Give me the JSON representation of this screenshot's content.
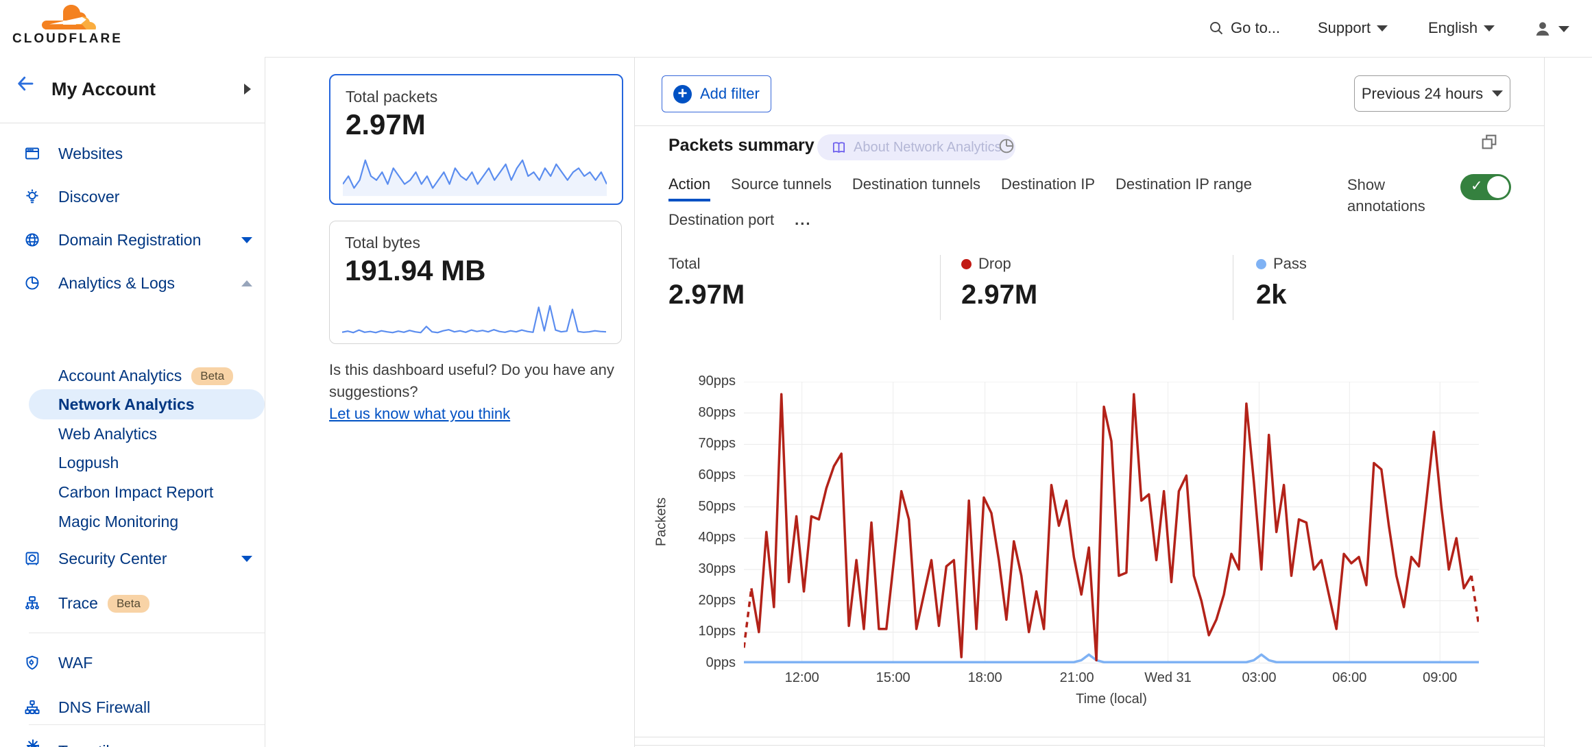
{
  "header": {
    "brand": "CLOUDFLARE",
    "goto_label": "Go to...",
    "support_label": "Support",
    "language_label": "English"
  },
  "sidebar": {
    "title": "My Account",
    "websites": "Websites",
    "discover": "Discover",
    "domain_registration": "Domain Registration",
    "analytics_logs": "Analytics & Logs",
    "account_analytics": "Account Analytics",
    "account_analytics_badge": "Beta",
    "network_analytics": "Network Analytics",
    "web_analytics": "Web Analytics",
    "logpush": "Logpush",
    "carbon_impact": "Carbon Impact Report",
    "magic_monitoring": "Magic Monitoring",
    "security_center": "Security Center",
    "trace": "Trace",
    "trace_badge": "Beta",
    "waf": "WAF",
    "dns_firewall": "DNS Firewall",
    "turnstile": "Turnstile"
  },
  "cards": {
    "packets": {
      "title": "Total packets",
      "value": "2.97M",
      "spark": [
        3,
        5,
        2,
        4,
        9,
        5,
        4,
        6,
        3,
        7,
        5,
        3,
        4,
        6,
        3,
        5,
        2,
        4,
        6,
        3,
        7,
        5,
        4,
        6,
        3,
        5,
        7,
        4,
        6,
        8,
        4,
        7,
        9,
        5,
        6,
        4,
        7,
        5,
        8,
        6,
        4,
        6,
        7,
        5,
        6,
        4,
        6,
        3
      ]
    },
    "bytes": {
      "title": "Total bytes",
      "value": "191.94 MB",
      "spark": [
        1.2,
        1.5,
        1.1,
        1.8,
        1.2,
        1.4,
        1.1,
        1.6,
        1.3,
        1.1,
        1.5,
        1.2,
        1.7,
        1.3,
        1.1,
        2.8,
        1.3,
        1.1,
        1.6,
        1.9,
        1.3,
        1.6,
        1.2,
        1.8,
        1.4,
        1.7,
        1.3,
        1.9,
        1.4,
        1.2,
        1.6,
        1.3,
        1.8,
        1.4,
        1.2,
        8.2,
        1.6,
        8.6,
        1.8,
        1.3,
        1.5,
        7.6,
        1.4,
        1.2,
        1.3,
        1.6,
        1.4,
        1.3
      ]
    }
  },
  "feedback": {
    "question_line1": "Is this dashboard useful? Do you have any",
    "question_line2": "suggestions?",
    "link": "Let us know what you think"
  },
  "toolbar": {
    "add_filter": "Add filter",
    "time_range": "Previous 24 hours"
  },
  "panel": {
    "title": "Packets summary",
    "about": "About Network Analytics",
    "show_annotations_line1": "Show",
    "show_annotations_line2": "annotations",
    "tabs": [
      "Action",
      "Source tunnels",
      "Destination tunnels",
      "Destination IP",
      "Destination IP range",
      "Destination port"
    ],
    "more": "...",
    "active_tab": "Action",
    "stats": [
      {
        "label": "Total",
        "value": "2.97M",
        "color": null
      },
      {
        "label": "Drop",
        "value": "2.97M",
        "color": "#c21a14"
      },
      {
        "label": "Pass",
        "value": "2k",
        "color": "#7fb2f4"
      }
    ]
  },
  "chart_data": {
    "type": "line",
    "title": "Packets summary",
    "xlabel": "Time (local)",
    "ylabel": "Packets",
    "ylim": [
      0,
      90
    ],
    "grid": true,
    "y_ticks": [
      "90pps",
      "80pps",
      "70pps",
      "60pps",
      "50pps",
      "40pps",
      "30pps",
      "20pps",
      "10pps",
      "0pps"
    ],
    "x_ticks": [
      {
        "label": "12:00",
        "f": 0.079
      },
      {
        "label": "15:00",
        "f": 0.203
      },
      {
        "label": "18:00",
        "f": 0.328
      },
      {
        "label": "21:00",
        "f": 0.453
      },
      {
        "label": "Wed 31",
        "f": 0.577
      },
      {
        "label": "03:00",
        "f": 0.701
      },
      {
        "label": "06:00",
        "f": 0.824
      },
      {
        "label": "09:00",
        "f": 0.947
      }
    ],
    "series": [
      {
        "name": "Drop",
        "color": "#b32219",
        "dashed_ends": true,
        "values": [
          5,
          24,
          10,
          42,
          18,
          86,
          26,
          47,
          23,
          47,
          46,
          56,
          63,
          67,
          12,
          33,
          11,
          45,
          11,
          11,
          33,
          55,
          46,
          11,
          22,
          33,
          12,
          31,
          33,
          2,
          52,
          11,
          53,
          48,
          33,
          14,
          39,
          28,
          10,
          23,
          11,
          57,
          44,
          52,
          34,
          22,
          37,
          1,
          82,
          71,
          28,
          29,
          86,
          52,
          54,
          33,
          55,
          26,
          55,
          60,
          28,
          20,
          9,
          14,
          22,
          35,
          30,
          83,
          58,
          30,
          73,
          42,
          57,
          28,
          46,
          45,
          30,
          33,
          22,
          11,
          35,
          32,
          34,
          25,
          64,
          62,
          44,
          28,
          18,
          34,
          31,
          52,
          74,
          50,
          30,
          40,
          24,
          28,
          12
        ]
      },
      {
        "name": "Pass",
        "color": "#7fb2f4",
        "dashed_ends": false,
        "values": [
          0.4,
          0.4,
          0.4,
          0.4,
          0.4,
          0.4,
          0.4,
          0.4,
          0.4,
          0.4,
          0.4,
          0.4,
          0.4,
          0.4,
          0.4,
          0.4,
          0.4,
          0.4,
          0.4,
          0.4,
          0.4,
          0.4,
          0.4,
          0.4,
          0.4,
          0.4,
          0.4,
          0.4,
          0.4,
          0.4,
          0.4,
          0.4,
          0.4,
          0.4,
          0.4,
          0.4,
          0.4,
          0.4,
          0.4,
          0.4,
          0.4,
          0.4,
          0.4,
          0.4,
          0.4,
          1.0,
          2.8,
          1.0,
          0.4,
          0.4,
          0.4,
          0.4,
          0.4,
          0.4,
          0.4,
          0.4,
          0.4,
          0.4,
          0.4,
          0.4,
          0.4,
          0.4,
          0.4,
          0.4,
          0.4,
          0.4,
          0.4,
          0.4,
          1.0,
          2.8,
          1.0,
          0.4,
          0.4,
          0.4,
          0.4,
          0.4,
          0.4,
          0.4,
          0.4,
          0.4,
          0.4,
          0.4,
          0.4,
          0.4,
          0.4,
          0.4,
          0.4,
          0.4,
          0.4,
          0.4,
          0.4,
          0.4,
          0.4,
          0.4,
          0.4,
          0.4,
          0.4,
          0.4,
          0.4
        ]
      }
    ],
    "legend": [
      {
        "label": "Drop",
        "color": "#c21a14"
      },
      {
        "label": "Pass",
        "color": "#7fb2f4"
      }
    ]
  }
}
